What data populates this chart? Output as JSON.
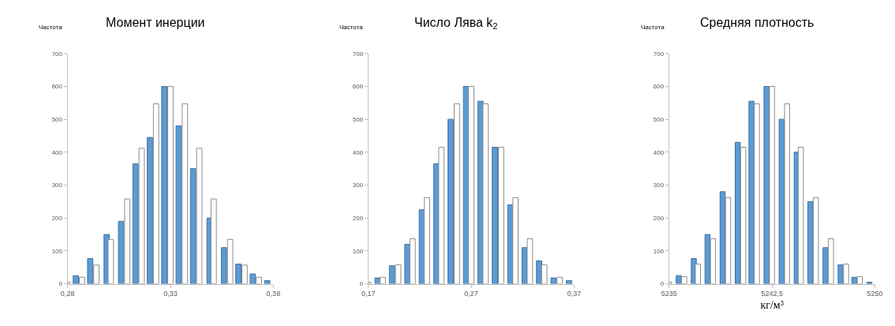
{
  "chart_data": [
    {
      "type": "bar",
      "title": "Момент инерции",
      "ylabel": "Частота",
      "xlim": [
        0.28,
        0.38
      ],
      "xticks": [
        {
          "value": 0.28,
          "label": "0,28"
        },
        {
          "value": 0.33,
          "label": "0,33"
        },
        {
          "value": 0.38,
          "label": "0,38"
        }
      ],
      "ylim": [
        0,
        700
      ],
      "yticks": [
        0,
        100,
        200,
        300,
        400,
        500,
        600,
        700
      ],
      "series": [
        {
          "color": "#5b9bd5",
          "x": [
            0.284,
            0.291,
            0.299,
            0.306,
            0.313,
            0.32,
            0.327,
            0.334,
            0.341,
            0.349,
            0.356,
            0.363,
            0.37,
            0.377
          ],
          "values": [
            25,
            77,
            150,
            190,
            365,
            445,
            600,
            480,
            350,
            200,
            110,
            60,
            30,
            10
          ]
        },
        {
          "color": "#ffffff",
          "x": [
            0.28,
            0.287,
            0.294,
            0.301,
            0.309,
            0.316,
            0.323,
            0.33,
            0.337,
            0.344,
            0.351,
            0.359,
            0.366,
            0.373
          ],
          "values": [
            5,
            20,
            57,
            135,
            258,
            412,
            547,
            600,
            547,
            412,
            258,
            135,
            57,
            20
          ]
        }
      ]
    },
    {
      "type": "bar",
      "title": "Число Лява k$_{2}$",
      "ylabel": "Частота",
      "xlim": [
        0.17,
        0.37
      ],
      "xticks": [
        {
          "value": 0.17,
          "label": "0,17"
        },
        {
          "value": 0.27,
          "label": "0,27"
        },
        {
          "value": 0.37,
          "label": "0,37"
        }
      ],
      "ylim": [
        0,
        700
      ],
      "yticks": [
        0,
        100,
        200,
        300,
        400,
        500,
        600,
        700
      ],
      "series": [
        {
          "color": "#5b9bd5",
          "x": [
            0.179,
            0.193,
            0.208,
            0.222,
            0.236,
            0.25,
            0.265,
            0.279,
            0.293,
            0.308,
            0.322,
            0.336,
            0.35,
            0.365
          ],
          "values": [
            18,
            55,
            120,
            225,
            365,
            500,
            600,
            555,
            415,
            240,
            110,
            70,
            18,
            10
          ]
        },
        {
          "color": "#ffffff",
          "x": [
            0.17,
            0.184,
            0.199,
            0.213,
            0.227,
            0.241,
            0.256,
            0.27,
            0.284,
            0.299,
            0.313,
            0.327,
            0.341,
            0.356
          ],
          "values": [
            5,
            20,
            58,
            137,
            262,
            415,
            547,
            600,
            547,
            415,
            262,
            137,
            58,
            20
          ]
        }
      ]
    },
    {
      "type": "bar",
      "title": "Средняя плотность",
      "ylabel": "Частота",
      "xlabel": "кг/м³",
      "xlim": [
        5235,
        5250
      ],
      "xticks": [
        5235,
        {
          "value": 5242.5,
          "label": "5242,5"
        },
        5250
      ],
      "ylim": [
        0,
        700
      ],
      "yticks": [
        0,
        100,
        200,
        300,
        400,
        500,
        600,
        700
      ],
      "series": [
        {
          "color": "#5b9bd5",
          "x": [
            5235.7,
            5236.8,
            5237.8,
            5238.9,
            5240.0,
            5241.0,
            5242.1,
            5243.2,
            5244.3,
            5245.3,
            5246.4,
            5247.5,
            5248.5,
            5249.6
          ],
          "values": [
            25,
            77,
            150,
            280,
            430,
            555,
            600,
            500,
            400,
            250,
            110,
            58,
            20,
            5
          ]
        },
        {
          "color": "#ffffff",
          "x": [
            5235.0,
            5236.1,
            5237.1,
            5238.2,
            5239.3,
            5240.4,
            5241.4,
            5242.5,
            5243.6,
            5244.6,
            5245.7,
            5246.8,
            5247.9,
            5248.9
          ],
          "values": [
            5,
            22,
            60,
            137,
            262,
            415,
            547,
            600,
            547,
            415,
            262,
            137,
            60,
            22
          ]
        }
      ]
    }
  ]
}
